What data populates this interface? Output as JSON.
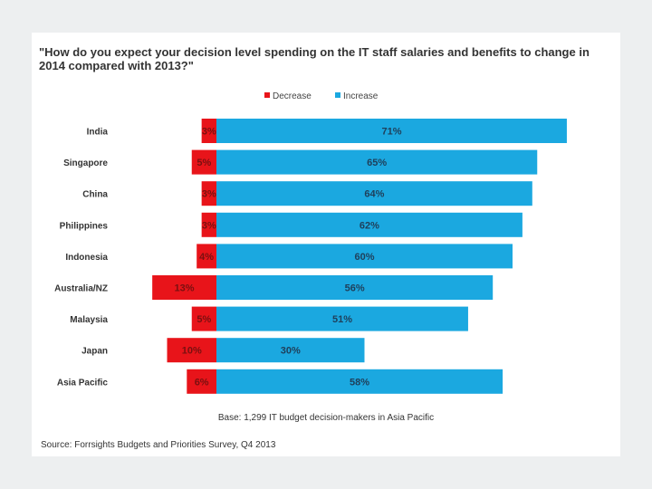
{
  "chart_data": {
    "type": "bar",
    "orientation": "horizontal",
    "stacked": "diverging",
    "title": "\"How do you expect your decision level spending on the IT staff salaries and benefits to change in 2014 compared with 2013?\"",
    "categories": [
      "India",
      "Singapore",
      "China",
      "Philippines",
      "Indonesia",
      "Australia/NZ",
      "Malaysia",
      "Japan",
      "Asia Pacific"
    ],
    "series": [
      {
        "name": "Decrease",
        "color": "#e8141a",
        "values": [
          3,
          5,
          3,
          3,
          4,
          13,
          5,
          10,
          6
        ],
        "labels": [
          "3%",
          "5%",
          "3%",
          "3%",
          "4%",
          "13%",
          "5%",
          "10%",
          "6%"
        ]
      },
      {
        "name": "Increase",
        "color": "#1ba8e0",
        "values": [
          71,
          65,
          64,
          62,
          60,
          56,
          51,
          30,
          58
        ],
        "labels": [
          "71%",
          "65%",
          "64%",
          "62%",
          "60%",
          "56%",
          "51%",
          "30%",
          "58%"
        ]
      }
    ],
    "legend": "top-center",
    "grid": false
  },
  "notes": {
    "base": "Base: 1,299 IT budget decision-makers in Asia Pacific",
    "source": "Source: Forrsights Budgets and Priorities Survey, Q4 2013"
  }
}
